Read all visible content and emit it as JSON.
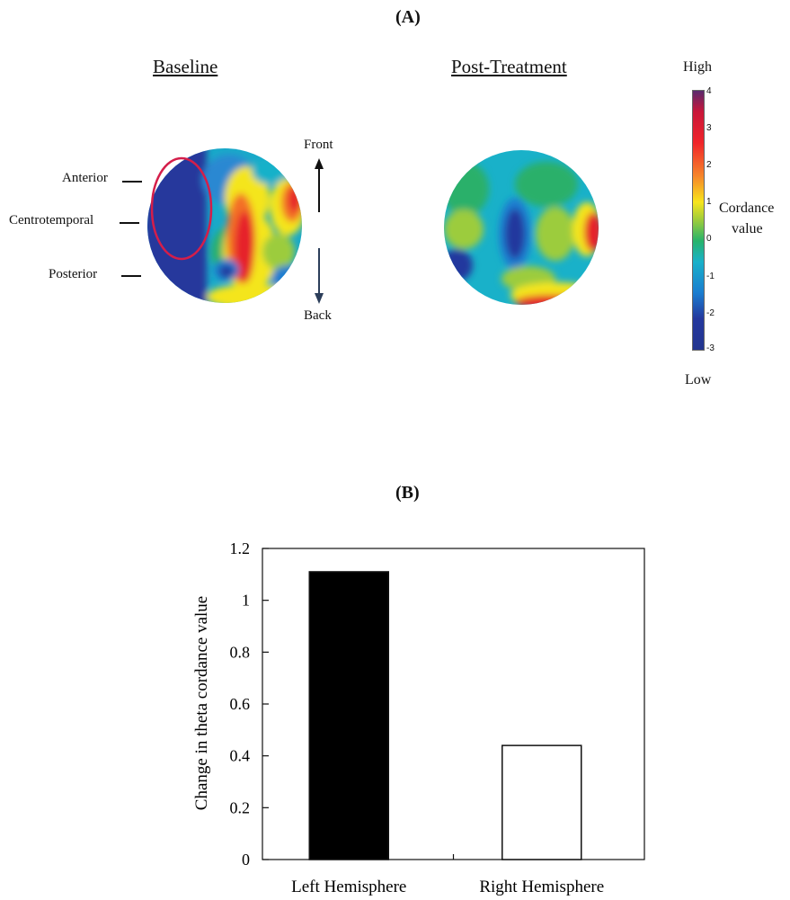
{
  "panel_a": {
    "label": "(A)",
    "baseline_title": "Baseline",
    "post_title": "Post-Treatment",
    "regions": [
      "Anterior",
      "Centrotemporal",
      "Posterior"
    ],
    "front_label": "Front",
    "back_label": "Back",
    "colorbar": {
      "high_label": "High",
      "low_label": "Low",
      "title_line1": "Cordance",
      "title_line2": "value",
      "ticks": [
        "4",
        "3",
        "2",
        "1",
        "0",
        "-1",
        "-2",
        "-3"
      ],
      "colors": [
        "#5a2a6e",
        "#c8163a",
        "#f0242a",
        "#f6862a",
        "#f7e51c",
        "#9ccc3c",
        "#27b36b",
        "#19b1c9",
        "#1a7dd0",
        "#24389e",
        "#23358f"
      ]
    }
  },
  "panel_b": {
    "label": "(B)"
  },
  "chart_data": {
    "type": "bar",
    "categories": [
      "Left Hemisphere",
      "Right Hemisphere"
    ],
    "values": [
      1.11,
      0.44
    ],
    "bar_colors": [
      "#000000",
      "#ffffff"
    ],
    "ylabel": "Change in theta cordance value",
    "xlabel": "",
    "ylim": [
      0,
      1.2
    ],
    "yticks": [
      "0",
      "0.2",
      "0.4",
      "0.6",
      "0.8",
      "1",
      "1.2"
    ],
    "grid": false
  }
}
